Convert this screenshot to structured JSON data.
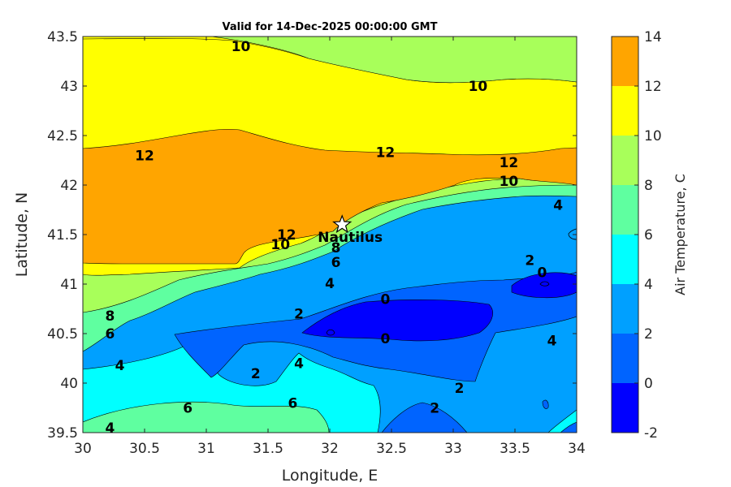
{
  "chart_data": {
    "type": "contour",
    "title": "Valid for 14-Dec-2025 00:00:00 GMT",
    "xlabel": "Longitude, E",
    "ylabel": "Latitude, N",
    "xlim": [
      30,
      34
    ],
    "ylim": [
      39.5,
      43.5
    ],
    "xticks": [
      "30",
      "30.5",
      "31",
      "31.5",
      "32",
      "32.5",
      "33",
      "33.5",
      "34"
    ],
    "yticks": [
      "39.5",
      "40",
      "40.5",
      "41",
      "41.5",
      "42",
      "42.5",
      "43",
      "43.5"
    ],
    "colorbar": {
      "label": "Air Temperature, C",
      "ticks": [
        "-2",
        "0",
        "2",
        "4",
        "6",
        "8",
        "10",
        "12",
        "14"
      ],
      "levels": [
        -2,
        0,
        2,
        4,
        6,
        8,
        10,
        12,
        14
      ],
      "colors": [
        "#0000ff",
        "#0064ff",
        "#00a0ff",
        "#00ffff",
        "#5fffa0",
        "#a8ff5a",
        "#ffff00",
        "#ffa500",
        "#ff5a00"
      ]
    },
    "station": {
      "name": "Nautilus",
      "lon": 32.1,
      "lat": 41.6
    },
    "contour_labels": [
      {
        "text": "10",
        "lon": 31.28,
        "lat": 43.4
      },
      {
        "text": "10",
        "lon": 33.2,
        "lat": 43.0
      },
      {
        "text": "12",
        "lon": 30.5,
        "lat": 42.3
      },
      {
        "text": "12",
        "lon": 32.45,
        "lat": 42.33
      },
      {
        "text": "12",
        "lon": 33.45,
        "lat": 42.23
      },
      {
        "text": "10",
        "lon": 33.45,
        "lat": 42.04
      },
      {
        "text": "4",
        "lon": 33.85,
        "lat": 41.8
      },
      {
        "text": "12",
        "lon": 31.65,
        "lat": 41.5
      },
      {
        "text": "10",
        "lon": 31.6,
        "lat": 41.4
      },
      {
        "text": "8",
        "lon": 32.05,
        "lat": 41.37
      },
      {
        "text": "6",
        "lon": 32.05,
        "lat": 41.22
      },
      {
        "text": "4",
        "lon": 32.0,
        "lat": 41.01
      },
      {
        "text": "2",
        "lon": 33.62,
        "lat": 41.24
      },
      {
        "text": "0",
        "lon": 33.72,
        "lat": 41.12
      },
      {
        "text": "0",
        "lon": 32.45,
        "lat": 40.85
      },
      {
        "text": "2",
        "lon": 31.75,
        "lat": 40.7
      },
      {
        "text": "8",
        "lon": 30.22,
        "lat": 40.68
      },
      {
        "text": "6",
        "lon": 30.22,
        "lat": 40.5
      },
      {
        "text": "0",
        "lon": 32.45,
        "lat": 40.45
      },
      {
        "text": "4",
        "lon": 33.8,
        "lat": 40.43
      },
      {
        "text": "4",
        "lon": 30.3,
        "lat": 40.18
      },
      {
        "text": "4",
        "lon": 31.75,
        "lat": 40.2
      },
      {
        "text": "2",
        "lon": 31.4,
        "lat": 40.1
      },
      {
        "text": "2",
        "lon": 33.05,
        "lat": 39.95
      },
      {
        "text": "6",
        "lon": 30.85,
        "lat": 39.75
      },
      {
        "text": "6",
        "lon": 31.7,
        "lat": 39.8
      },
      {
        "text": "2",
        "lon": 32.85,
        "lat": 39.75
      },
      {
        "text": "4",
        "lon": 30.22,
        "lat": 39.55
      }
    ]
  }
}
